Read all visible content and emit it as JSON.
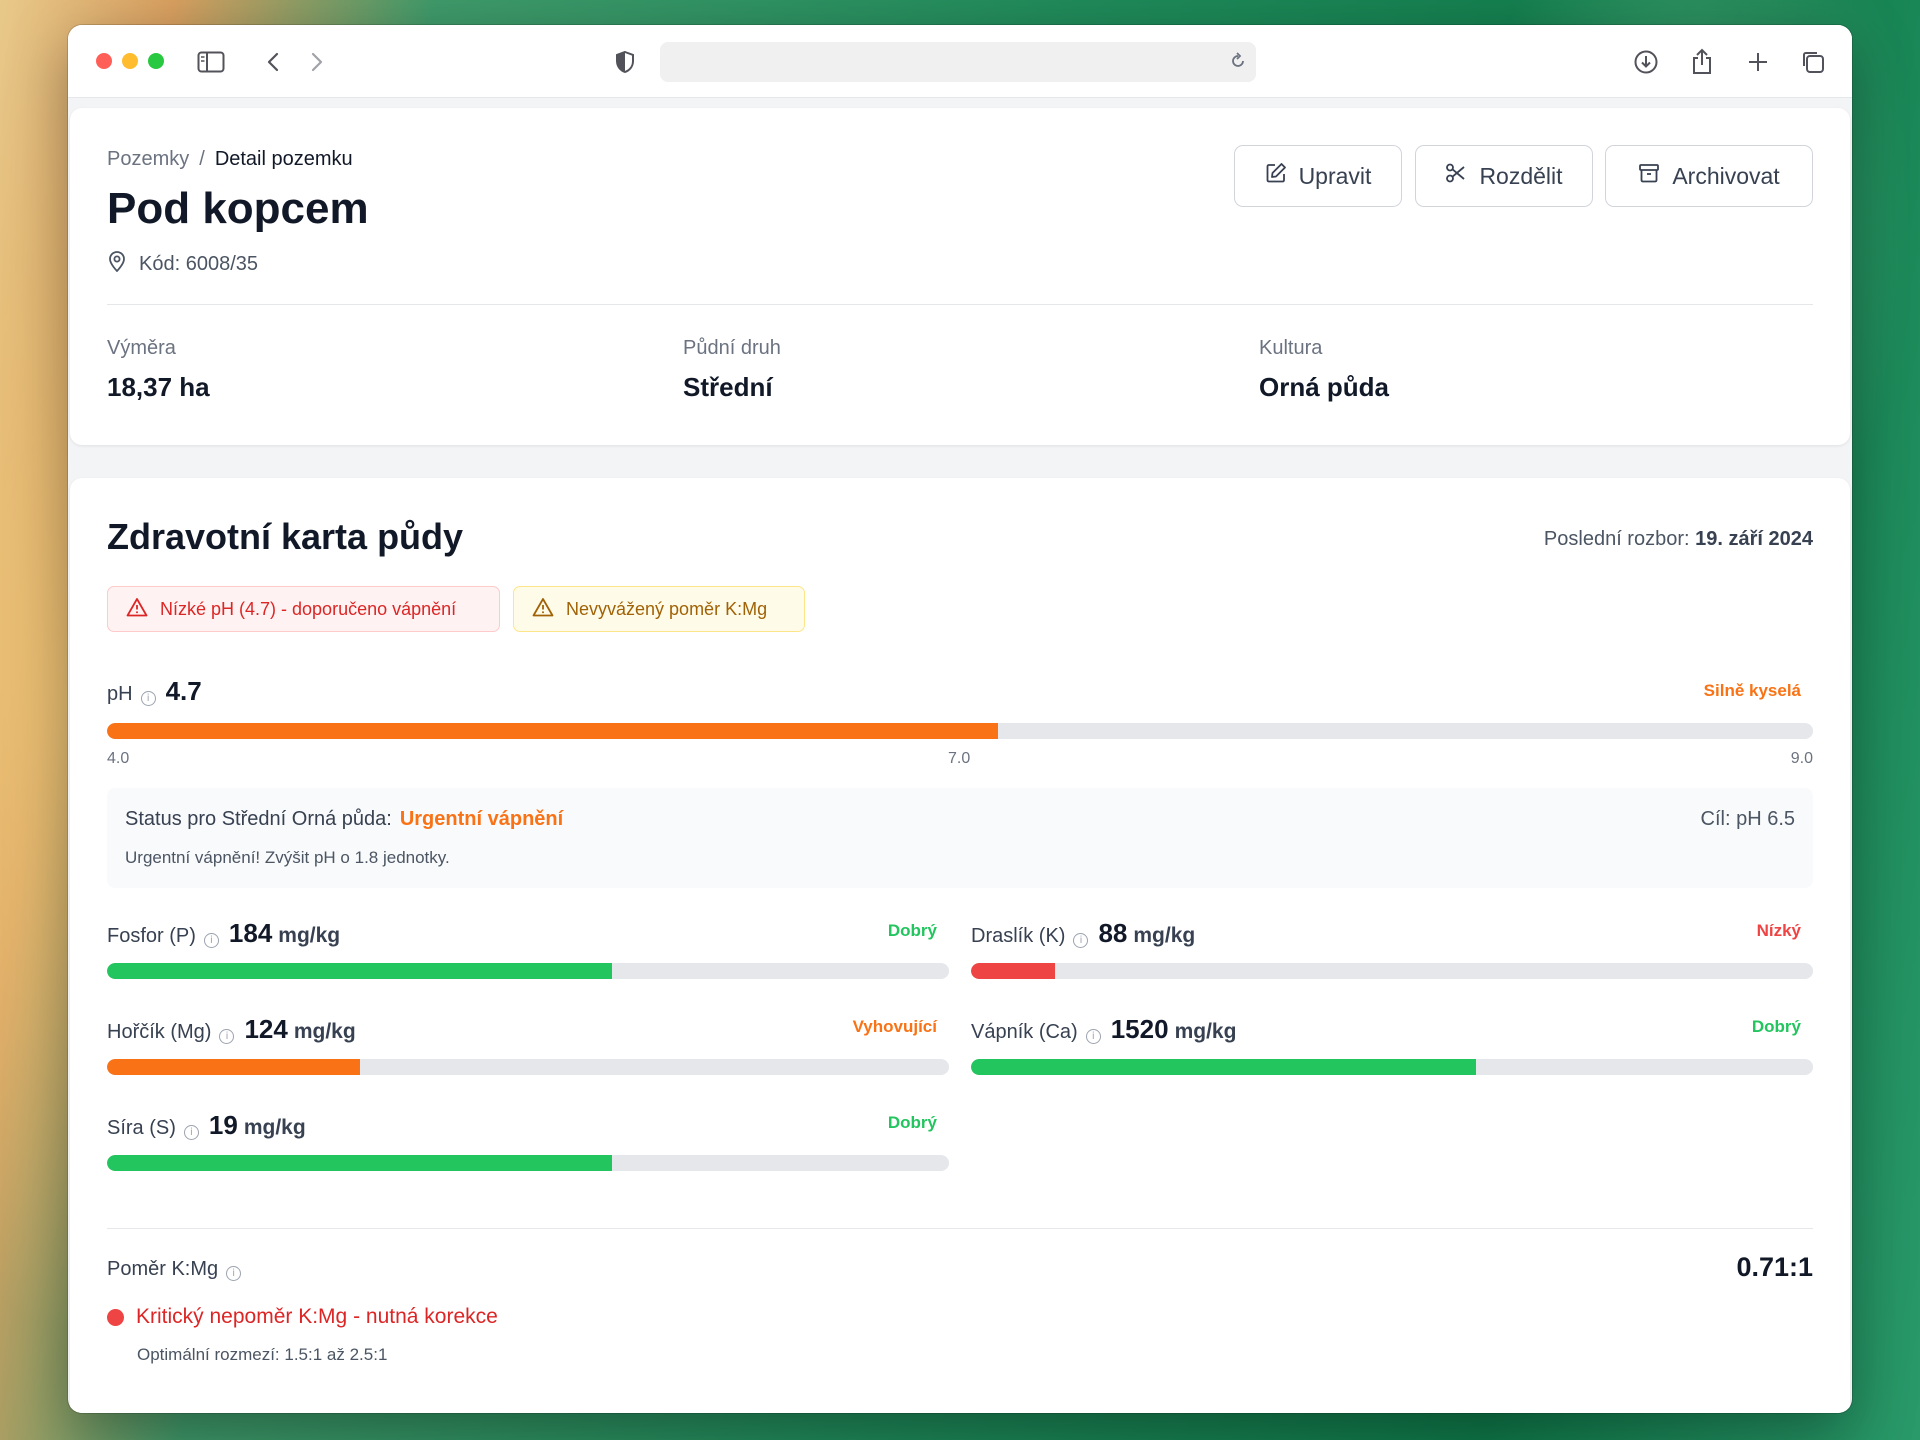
{
  "browser": {
    "url": ""
  },
  "header": {
    "breadcrumb": [
      "Pozemky",
      "Detail pozemku"
    ],
    "breadcrumb_separator": "/",
    "title": "Pod kopcem",
    "code": "Kód: 6008/35",
    "actions": [
      "Upravit",
      "Rozdělit",
      "Archivovat"
    ]
  },
  "stats": [
    {
      "label": "Výměra",
      "value": "18,37 ha"
    },
    {
      "label": "Půdní druh",
      "value": "Střední"
    },
    {
      "label": "Kultura",
      "value": "Orná půda"
    }
  ],
  "soil": {
    "title": "Zdravotní karta půdy",
    "last_analysis_label": "Poslední rozbor:",
    "last_analysis_date": "19. září 2024",
    "alerts": [
      {
        "text": "Nízké pH (4.7) - doporučeno vápnění",
        "level": "danger"
      },
      {
        "text": "Nevyvážený poměr K:Mg",
        "level": "warning"
      }
    ],
    "ph": {
      "label": "pH",
      "value": "4.7",
      "status": "Silně kyselá",
      "status_color": "#f97316",
      "scale_min": "4.0",
      "scale_mid": "7.0",
      "scale_max": "9.0",
      "fill_fraction": 0.522,
      "fill_color": "#f97316"
    },
    "status_box": {
      "prefix": "Status pro Střední Orná půda:",
      "status": "Urgentní vápnění",
      "detail": "Urgentní vápnění! Zvýšit pH o 1.8 jednotky.",
      "goal": "Cíl: pH 6.5"
    },
    "nutrients": [
      {
        "label": "Fosfor (P)",
        "value": "184",
        "unit": "mg/kg",
        "status": "Dobrý",
        "color": "#22c55e",
        "fill_fraction": 0.6
      },
      {
        "label": "Draslík (K)",
        "value": "88",
        "unit": "mg/kg",
        "status": "Nízký",
        "color": "#ef4444",
        "fill_fraction": 0.1
      },
      {
        "label": "Hořčík (Mg)",
        "value": "124",
        "unit": "mg/kg",
        "status": "Vyhovující",
        "color": "#f97316",
        "fill_fraction": 0.3
      },
      {
        "label": "Vápník (Ca)",
        "value": "1520",
        "unit": "mg/kg",
        "status": "Dobrý",
        "color": "#22c55e",
        "fill_fraction": 0.6
      },
      {
        "label": "Síra (S)",
        "value": "19",
        "unit": "mg/kg",
        "status": "Dobrý",
        "color": "#22c55e",
        "fill_fraction": 0.6
      }
    ],
    "ratio": {
      "label": "Poměr K:Mg",
      "value": "0.71:1",
      "message": "Kritický nepoměr K:Mg - nutná korekce",
      "optimal": "Optimální rozmezí: 1.5:1 až 2.5:1"
    }
  }
}
